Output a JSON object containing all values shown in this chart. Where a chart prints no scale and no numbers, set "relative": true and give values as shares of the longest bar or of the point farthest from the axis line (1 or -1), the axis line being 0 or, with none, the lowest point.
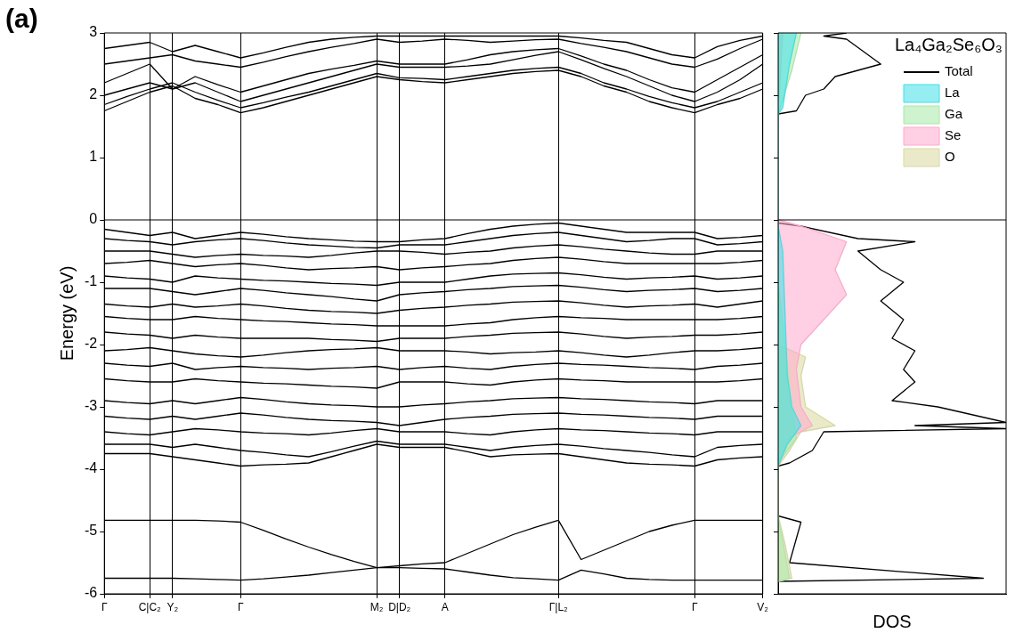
{
  "chart_data": [
    {
      "type": "line",
      "ylabel": "Energy (eV)",
      "annotations": [
        "(a)"
      ],
      "categories": [
        "Γ",
        null,
        "C|C₂",
        "Y₂",
        null,
        null,
        "Γ",
        null,
        null,
        null,
        null,
        null,
        "M₂",
        "D|D₂",
        null,
        "A",
        null,
        null,
        null,
        null,
        "Γ|L₂",
        null,
        null,
        null,
        null,
        null,
        "Γ",
        null,
        null,
        "V₂"
      ],
      "ylim": [
        -6,
        3
      ],
      "yticks": [
        -6,
        -5,
        -4,
        -3,
        -2,
        -1,
        0,
        1,
        2,
        3
      ],
      "grid": "x",
      "marker": "none",
      "line_style": "solid",
      "ref_lines": [
        {
          "axis": "y",
          "value": 0,
          "color": "#000000"
        }
      ],
      "series": [
        {
          "color": "#000000",
          "values": [
            1.75,
            1.9,
            2.05,
            2.15,
            1.95,
            1.85,
            1.72,
            1.8,
            1.9,
            2.0,
            2.1,
            2.2,
            2.3,
            2.25,
            2.22,
            2.2,
            2.25,
            2.3,
            2.35,
            2.38,
            2.4,
            2.3,
            2.15,
            2.05,
            1.9,
            1.8,
            1.72,
            1.85,
            1.95,
            2.1
          ]
        },
        {
          "color": "#000000",
          "values": [
            1.85,
            1.98,
            2.1,
            2.2,
            2.05,
            1.92,
            1.8,
            1.88,
            1.97,
            2.05,
            2.15,
            2.25,
            2.35,
            2.28,
            2.27,
            2.25,
            2.3,
            2.35,
            2.4,
            2.43,
            2.45,
            2.35,
            2.2,
            2.1,
            1.98,
            1.88,
            1.8,
            1.9,
            2.05,
            2.2
          ]
        },
        {
          "color": "#000000",
          "values": [
            2.0,
            2.1,
            2.2,
            2.1,
            2.2,
            2.05,
            1.9,
            2.0,
            2.1,
            2.2,
            2.3,
            2.4,
            2.5,
            2.45,
            2.45,
            2.45,
            2.47,
            2.5,
            2.57,
            2.64,
            2.7,
            2.57,
            2.43,
            2.3,
            2.15,
            2.0,
            1.9,
            2.05,
            2.25,
            2.5
          ]
        },
        {
          "color": "#000000",
          "values": [
            2.2,
            2.35,
            2.5,
            2.1,
            2.3,
            2.17,
            2.05,
            2.15,
            2.25,
            2.35,
            2.42,
            2.48,
            2.55,
            2.5,
            2.5,
            2.5,
            2.57,
            2.65,
            2.7,
            2.73,
            2.75,
            2.63,
            2.5,
            2.4,
            2.25,
            2.12,
            2.05,
            2.25,
            2.45,
            2.65
          ]
        },
        {
          "color": "#000000",
          "values": [
            2.5,
            2.55,
            2.6,
            2.65,
            2.55,
            2.5,
            2.45,
            2.53,
            2.62,
            2.7,
            2.77,
            2.83,
            2.9,
            2.85,
            2.87,
            2.9,
            2.88,
            2.85,
            2.87,
            2.89,
            2.9,
            2.83,
            2.77,
            2.7,
            2.6,
            2.5,
            2.45,
            2.58,
            2.75,
            2.9
          ]
        },
        {
          "color": "#000000",
          "values": [
            2.75,
            2.8,
            2.85,
            2.7,
            2.8,
            2.7,
            2.6,
            2.68,
            2.77,
            2.85,
            2.9,
            2.93,
            2.95,
            2.95,
            2.95,
            2.95,
            2.95,
            2.95,
            2.95,
            2.95,
            2.95,
            2.92,
            2.88,
            2.85,
            2.75,
            2.65,
            2.6,
            2.78,
            2.88,
            2.95
          ]
        },
        {
          "color": "#000000",
          "values": [
            -0.15,
            -0.2,
            -0.25,
            -0.2,
            -0.3,
            -0.25,
            -0.2,
            -0.23,
            -0.27,
            -0.3,
            -0.32,
            -0.34,
            -0.35,
            -0.35,
            -0.32,
            -0.3,
            -0.22,
            -0.15,
            -0.1,
            -0.07,
            -0.05,
            -0.1,
            -0.15,
            -0.2,
            -0.2,
            -0.2,
            -0.2,
            -0.3,
            -0.28,
            -0.25
          ]
        },
        {
          "color": "#000000",
          "values": [
            -0.3,
            -0.33,
            -0.35,
            -0.4,
            -0.35,
            -0.32,
            -0.3,
            -0.33,
            -0.37,
            -0.4,
            -0.42,
            -0.44,
            -0.45,
            -0.4,
            -0.4,
            -0.4,
            -0.35,
            -0.3,
            -0.25,
            -0.22,
            -0.2,
            -0.25,
            -0.3,
            -0.35,
            -0.33,
            -0.3,
            -0.3,
            -0.4,
            -0.38,
            -0.35
          ]
        },
        {
          "color": "#000000",
          "values": [
            -0.5,
            -0.5,
            -0.5,
            -0.55,
            -0.6,
            -0.57,
            -0.55,
            -0.57,
            -0.58,
            -0.6,
            -0.57,
            -0.53,
            -0.5,
            -0.5,
            -0.52,
            -0.55,
            -0.52,
            -0.5,
            -0.45,
            -0.42,
            -0.4,
            -0.43,
            -0.47,
            -0.5,
            -0.53,
            -0.55,
            -0.55,
            -0.5,
            -0.5,
            -0.5
          ]
        },
        {
          "color": "#000000",
          "values": [
            -0.7,
            -0.68,
            -0.65,
            -0.7,
            -0.75,
            -0.72,
            -0.7,
            -0.73,
            -0.77,
            -0.8,
            -0.78,
            -0.77,
            -0.75,
            -0.8,
            -0.77,
            -0.75,
            -0.72,
            -0.7,
            -0.65,
            -0.62,
            -0.6,
            -0.63,
            -0.67,
            -0.7,
            -0.7,
            -0.7,
            -0.7,
            -0.7,
            -0.68,
            -0.65
          ]
        },
        {
          "color": "#000000",
          "values": [
            -0.9,
            -0.93,
            -0.95,
            -1.0,
            -0.9,
            -0.93,
            -0.95,
            -0.97,
            -0.98,
            -1.0,
            -1.02,
            -1.03,
            -1.05,
            -1.0,
            -1.0,
            -1.0,
            -0.95,
            -0.9,
            -0.87,
            -0.86,
            -0.85,
            -0.88,
            -0.92,
            -0.95,
            -0.93,
            -0.92,
            -0.9,
            -0.95,
            -0.93,
            -0.9
          ]
        },
        {
          "color": "#000000",
          "values": [
            -1.1,
            -1.1,
            -1.1,
            -1.15,
            -1.2,
            -1.15,
            -1.1,
            -1.13,
            -1.17,
            -1.2,
            -1.23,
            -1.27,
            -1.3,
            -1.2,
            -1.17,
            -1.15,
            -1.12,
            -1.1,
            -1.07,
            -1.06,
            -1.05,
            -1.08,
            -1.12,
            -1.15,
            -1.13,
            -1.12,
            -1.1,
            -1.15,
            -1.13,
            -1.1
          ]
        },
        {
          "color": "#000000",
          "values": [
            -1.35,
            -1.38,
            -1.4,
            -1.35,
            -1.4,
            -1.38,
            -1.35,
            -1.38,
            -1.42,
            -1.45,
            -1.47,
            -1.48,
            -1.5,
            -1.45,
            -1.42,
            -1.4,
            -1.37,
            -1.35,
            -1.32,
            -1.31,
            -1.3,
            -1.33,
            -1.37,
            -1.4,
            -1.38,
            -1.37,
            -1.35,
            -1.4,
            -1.35,
            -1.3
          ]
        },
        {
          "color": "#000000",
          "values": [
            -1.55,
            -1.58,
            -1.6,
            -1.6,
            -1.55,
            -1.58,
            -1.6,
            -1.62,
            -1.63,
            -1.65,
            -1.67,
            -1.68,
            -1.7,
            -1.7,
            -1.7,
            -1.7,
            -1.67,
            -1.65,
            -1.6,
            -1.57,
            -1.55,
            -1.57,
            -1.58,
            -1.6,
            -1.6,
            -1.6,
            -1.6,
            -1.6,
            -1.58,
            -1.55
          ]
        },
        {
          "color": "#000000",
          "values": [
            -1.8,
            -1.83,
            -1.85,
            -1.9,
            -1.85,
            -1.88,
            -1.9,
            -1.9,
            -1.9,
            -1.9,
            -1.92,
            -1.93,
            -1.95,
            -1.9,
            -1.9,
            -1.9,
            -1.87,
            -1.85,
            -1.82,
            -1.81,
            -1.8,
            -1.83,
            -1.87,
            -1.9,
            -1.88,
            -1.87,
            -1.85,
            -1.85,
            -1.83,
            -1.8
          ]
        },
        {
          "color": "#000000",
          "values": [
            -2.1,
            -2.08,
            -2.05,
            -2.1,
            -2.15,
            -2.18,
            -2.2,
            -2.17,
            -2.13,
            -2.1,
            -2.08,
            -2.07,
            -2.05,
            -2.1,
            -2.1,
            -2.1,
            -2.12,
            -2.15,
            -2.13,
            -2.12,
            -2.1,
            -2.13,
            -2.17,
            -2.2,
            -2.17,
            -2.13,
            -2.1,
            -2.1,
            -2.08,
            -2.05
          ]
        },
        {
          "color": "#000000",
          "values": [
            -2.3,
            -2.33,
            -2.35,
            -2.3,
            -2.4,
            -2.37,
            -2.35,
            -2.37,
            -2.38,
            -2.4,
            -2.38,
            -2.37,
            -2.35,
            -2.4,
            -2.37,
            -2.35,
            -2.38,
            -2.4,
            -2.35,
            -2.32,
            -2.3,
            -2.32,
            -2.33,
            -2.35,
            -2.37,
            -2.38,
            -2.4,
            -2.35,
            -2.33,
            -2.3
          ]
        },
        {
          "color": "#000000",
          "values": [
            -2.55,
            -2.58,
            -2.6,
            -2.6,
            -2.55,
            -2.58,
            -2.6,
            -2.62,
            -2.63,
            -2.65,
            -2.67,
            -2.68,
            -2.7,
            -2.6,
            -2.6,
            -2.6,
            -2.63,
            -2.65,
            -2.6,
            -2.57,
            -2.55,
            -2.57,
            -2.58,
            -2.6,
            -2.6,
            -2.6,
            -2.6,
            -2.6,
            -2.58,
            -2.55
          ]
        },
        {
          "color": "#000000",
          "values": [
            -2.9,
            -2.93,
            -2.95,
            -2.9,
            -2.95,
            -2.9,
            -2.85,
            -2.88,
            -2.92,
            -2.95,
            -2.97,
            -2.98,
            -3.0,
            -3.0,
            -2.97,
            -2.95,
            -2.92,
            -2.9,
            -2.87,
            -2.86,
            -2.85,
            -2.87,
            -2.88,
            -2.9,
            -2.92,
            -2.93,
            -2.95,
            -2.9,
            -2.9,
            -2.9
          ]
        },
        {
          "color": "#000000",
          "values": [
            -3.15,
            -3.18,
            -3.2,
            -3.15,
            -3.2,
            -3.15,
            -3.1,
            -3.13,
            -3.17,
            -3.2,
            -3.22,
            -3.23,
            -3.25,
            -3.3,
            -3.25,
            -3.2,
            -3.17,
            -3.15,
            -3.12,
            -3.11,
            -3.1,
            -3.12,
            -3.13,
            -3.15,
            -3.17,
            -3.18,
            -3.2,
            -3.15,
            -3.15,
            -3.15
          ]
        },
        {
          "color": "#000000",
          "values": [
            -3.4,
            -3.43,
            -3.45,
            -3.4,
            -3.35,
            -3.37,
            -3.4,
            -3.42,
            -3.43,
            -3.45,
            -3.42,
            -3.38,
            -3.35,
            -3.4,
            -3.4,
            -3.4,
            -3.43,
            -3.45,
            -3.4,
            -3.37,
            -3.35,
            -3.37,
            -3.38,
            -3.4,
            -3.42,
            -3.43,
            -3.45,
            -3.4,
            -3.4,
            -3.4
          ]
        },
        {
          "color": "#000000",
          "values": [
            -3.6,
            -3.6,
            -3.6,
            -3.65,
            -3.6,
            -3.65,
            -3.7,
            -3.73,
            -3.77,
            -3.8,
            -3.72,
            -3.63,
            -3.55,
            -3.6,
            -3.6,
            -3.6,
            -3.65,
            -3.7,
            -3.65,
            -3.62,
            -3.6,
            -3.63,
            -3.67,
            -3.7,
            -3.73,
            -3.77,
            -3.8,
            -3.65,
            -3.62,
            -3.6
          ]
        },
        {
          "color": "#000000",
          "values": [
            -3.75,
            -3.75,
            -3.75,
            -3.8,
            -3.85,
            -3.9,
            -3.95,
            -3.93,
            -3.92,
            -3.9,
            -3.8,
            -3.7,
            -3.6,
            -3.65,
            -3.65,
            -3.65,
            -3.72,
            -3.8,
            -3.77,
            -3.76,
            -3.75,
            -3.8,
            -3.85,
            -3.9,
            -3.92,
            -3.93,
            -3.95,
            -3.85,
            -3.82,
            -3.8
          ]
        },
        {
          "color": "#000000",
          "values": [
            -4.82,
            -4.82,
            -4.82,
            -4.82,
            -4.82,
            -4.83,
            -4.85,
            -4.98,
            -5.12,
            -5.25,
            -5.37,
            -5.48,
            -5.58,
            -5.55,
            -5.52,
            -5.5,
            -5.35,
            -5.2,
            -5.05,
            -4.93,
            -4.82,
            -5.45,
            -5.3,
            -5.15,
            -5.0,
            -4.9,
            -4.82,
            -4.82,
            -4.82,
            -4.82
          ]
        },
        {
          "color": "#000000",
          "values": [
            -5.75,
            -5.75,
            -5.75,
            -5.75,
            -5.76,
            -5.77,
            -5.78,
            -5.76,
            -5.73,
            -5.7,
            -5.66,
            -5.62,
            -5.58,
            -5.58,
            -5.59,
            -5.6,
            -5.65,
            -5.7,
            -5.74,
            -5.76,
            -5.78,
            -5.62,
            -5.68,
            -5.75,
            -5.77,
            -5.78,
            -5.78,
            -5.78,
            -5.78,
            -5.78
          ]
        }
      ]
    },
    {
      "type": "area",
      "orientation": "horizontal",
      "relative": true,
      "xlabel": "DOS",
      "ylim": [
        -6,
        3
      ],
      "yticks": [
        -6,
        -5,
        -4,
        -3,
        -2,
        -1,
        0,
        1,
        2,
        3
      ],
      "tick_labels": false,
      "legend": "top right",
      "legend_title": "La₄Ga₂Se₆O₃",
      "ref_lines": [
        {
          "axis": "y",
          "value": 0,
          "color": "#000000"
        }
      ],
      "series": [
        {
          "name": "Total",
          "type": "line",
          "color": "#000000",
          "values": [
            0.3,
            0.2,
            0.3,
            0.45,
            0.25,
            0.2,
            0.12,
            0.08,
            0,
            0,
            0,
            0.1,
            0.35,
            0.6,
            0.35,
            0.45,
            0.55,
            0.45,
            0.55,
            0.5,
            0.6,
            0.55,
            0.6,
            0.5,
            0.7,
            1.0,
            0.6,
            1.0,
            0.2,
            0.15,
            0.05,
            0,
            0,
            0.1,
            0.05,
            0.9,
            0
          ],
          "x": [
            3,
            2.95,
            2.9,
            2.5,
            2.3,
            2.1,
            2.0,
            1.75,
            1.7,
            -0.05,
            -0.05,
            -0.1,
            -0.3,
            -0.35,
            -0.5,
            -0.8,
            -1.0,
            -1.3,
            -1.6,
            -1.9,
            -2.1,
            -2.4,
            -2.6,
            -2.9,
            -3.0,
            -3.25,
            -3.3,
            -3.35,
            -3.4,
            -3.7,
            -3.9,
            -3.95,
            -4.75,
            -4.85,
            -5.5,
            -5.75,
            -5.8
          ]
        },
        {
          "name": "La",
          "color": "#40e0e8",
          "values": [
            0.08,
            0.05,
            0.02,
            0,
            0,
            0.02,
            0.04,
            0.06,
            0.1,
            0.04,
            0
          ],
          "x": [
            3,
            2.5,
            1.8,
            1.7,
            -0.1,
            -0.5,
            -2.5,
            -3.0,
            -3.3,
            -3.6,
            -3.95
          ]
        },
        {
          "name": "Ga",
          "color": "#a8e8a8",
          "values": [
            0.1,
            0.06,
            0,
            0,
            0.03,
            0.06,
            0.08,
            0,
            0,
            0.05,
            0
          ],
          "x": [
            3,
            2.4,
            1.7,
            -1.0,
            -2.0,
            -3.0,
            -3.5,
            -3.9,
            -4.75,
            -5.75,
            -5.8
          ]
        },
        {
          "name": "Se",
          "color": "#ffa8cc",
          "values": [
            0.02,
            0,
            0,
            0.1,
            0.3,
            0.25,
            0.3,
            0.2,
            0.1,
            0.08,
            0.1,
            0.15,
            0.05,
            0
          ],
          "x": [
            3,
            1.7,
            0,
            -0.1,
            -0.35,
            -0.8,
            -1.2,
            -1.6,
            -2.0,
            -2.4,
            -3.0,
            -3.3,
            -3.5,
            -3.95
          ]
        },
        {
          "name": "O",
          "color": "#d8d8a0",
          "values": [
            0,
            0.12,
            0.1,
            0.12,
            0.25,
            0.1,
            0.05,
            0,
            0,
            0.03,
            0.06,
            0
          ],
          "x": [
            -2.0,
            -2.2,
            -2.5,
            -3.0,
            -3.3,
            -3.4,
            -3.7,
            -3.95,
            -4.75,
            -5.2,
            -5.75,
            -5.8
          ]
        }
      ]
    }
  ]
}
